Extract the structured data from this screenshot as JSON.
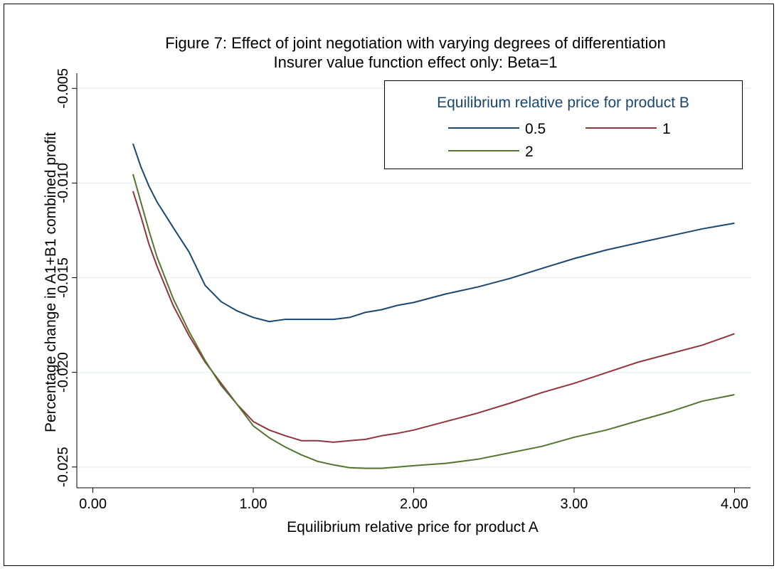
{
  "chart_data": {
    "type": "line",
    "title": "Figure 7: Effect of joint negotiation with varying degrees of differentiation",
    "subtitle": "Insurer value function effect only: Beta=1",
    "xlabel": "Equilibrium relative price for product A",
    "ylabel": "Percentage change in A1+B1 combined profit",
    "legend_title": "Equilibrium relative price for product B",
    "legend_position": "top-right",
    "grid": true,
    "x": [
      0.25,
      0.3,
      0.35,
      0.4,
      0.5,
      0.6,
      0.7,
      0.8,
      0.9,
      1.0,
      1.1,
      1.2,
      1.3,
      1.4,
      1.5,
      1.6,
      1.7,
      1.8,
      1.9,
      2.0,
      2.2,
      2.4,
      2.6,
      2.8,
      3.0,
      3.2,
      3.4,
      3.6,
      3.8,
      4.0
    ],
    "series": [
      {
        "name": "0.5",
        "color": "#1a476f",
        "values": [
          -0.00792,
          -0.00916,
          -0.01017,
          -0.011,
          -0.01234,
          -0.01365,
          -0.01541,
          -0.01627,
          -0.01676,
          -0.0171,
          -0.01732,
          -0.0172,
          -0.0172,
          -0.0172,
          -0.0172,
          -0.0171,
          -0.01683,
          -0.01669,
          -0.01646,
          -0.01631,
          -0.01586,
          -0.01549,
          -0.01504,
          -0.01451,
          -0.01399,
          -0.01354,
          -0.01316,
          -0.01279,
          -0.01242,
          -0.01212
        ]
      },
      {
        "name": "1",
        "color": "#90353b",
        "values": [
          -0.01043,
          -0.01178,
          -0.01324,
          -0.0144,
          -0.01646,
          -0.01807,
          -0.01946,
          -0.02058,
          -0.0217,
          -0.0226,
          -0.02305,
          -0.02335,
          -0.02361,
          -0.02361,
          -0.02369,
          -0.02361,
          -0.02354,
          -0.02335,
          -0.02322,
          -0.02305,
          -0.0226,
          -0.02215,
          -0.02163,
          -0.02107,
          -0.02058,
          -0.02002,
          -0.01946,
          -0.01901,
          -0.01856,
          -0.01796
        ]
      },
      {
        "name": "2",
        "color": "#55752f",
        "values": [
          -0.00953,
          -0.01103,
          -0.01253,
          -0.01391,
          -0.01609,
          -0.01785,
          -0.01938,
          -0.0207,
          -0.0217,
          -0.02283,
          -0.02346,
          -0.02395,
          -0.02436,
          -0.0247,
          -0.02489,
          -0.02504,
          -0.02507,
          -0.02507,
          -0.025,
          -0.02493,
          -0.02481,
          -0.02459,
          -0.02425,
          -0.02391,
          -0.02343,
          -0.02305,
          -0.02256,
          -0.02208,
          -0.02152,
          -0.02118
        ]
      }
    ],
    "xlim": [
      -0.1,
      4.1
    ],
    "ylim": [
      -0.0261,
      -0.0042
    ],
    "xticks": [
      {
        "value": 0,
        "label": "0.00"
      },
      {
        "value": 1,
        "label": "1.00"
      },
      {
        "value": 2,
        "label": "2.00"
      },
      {
        "value": 3,
        "label": "3.00"
      },
      {
        "value": 4,
        "label": "4.00"
      }
    ],
    "yticks": [
      -0.005,
      {
        "value": -0.01,
        "label": "-0.010"
      },
      -0.015,
      {
        "value": -0.02,
        "label": "-0.020"
      },
      -0.025
    ]
  }
}
